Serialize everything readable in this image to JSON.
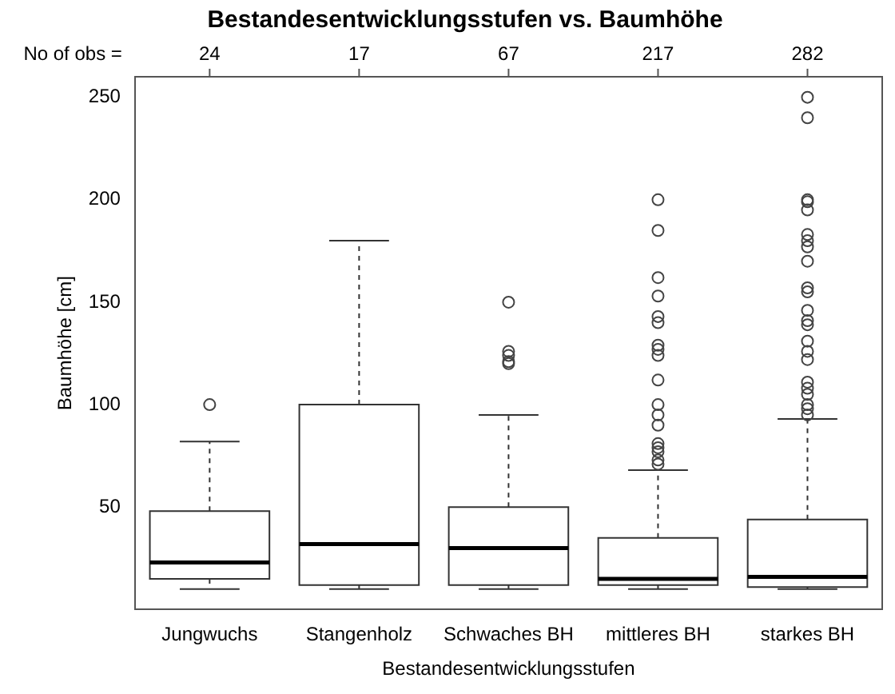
{
  "chart_data": {
    "type": "box",
    "title": "Bestandesentwicklungsstufen vs. Baumhöhe",
    "xlabel": "Bestandesentwicklungsstufen",
    "ylabel": "Baumhöhe [cm]",
    "categories": [
      "Jungwuchs",
      "Stangenholz",
      "Schwaches BH",
      "mittleres BH",
      "starkes BH"
    ],
    "boxes": [
      {
        "low": 10,
        "q1": 15,
        "median": 23,
        "q3": 48,
        "high": 82,
        "outliers": [
          100
        ]
      },
      {
        "low": 10,
        "q1": 12,
        "median": 32,
        "q3": 100,
        "high": 180
      },
      {
        "low": 10,
        "q1": 12,
        "median": 30,
        "q3": 50,
        "high": 95,
        "outliers": [
          150,
          126,
          124,
          121,
          120
        ]
      },
      {
        "low": 10,
        "q1": 12,
        "median": 15,
        "q3": 35,
        "high": 68,
        "outliers": [
          200,
          185,
          162,
          153,
          143,
          140,
          129,
          127,
          124,
          112,
          100,
          95,
          90,
          81,
          79,
          77,
          73,
          71
        ]
      },
      {
        "low": 10,
        "q1": 11,
        "median": 16,
        "q3": 44,
        "high": 93,
        "outliers": [
          250,
          240,
          200,
          199,
          195,
          183,
          180,
          177,
          170,
          157,
          155,
          146,
          141,
          139,
          131,
          126,
          122,
          111,
          108,
          105,
          100,
          98,
          95
        ]
      }
    ],
    "ylim": [
      0,
      260
    ],
    "yticks": [
      50,
      100,
      150,
      200,
      250
    ],
    "grid": false,
    "legend": false,
    "marker": "circle",
    "annotations": [
      "No of obs =",
      {
        "text": "24",
        "x": "Jungwuchs"
      },
      {
        "text": "17",
        "x": "Stangenholz"
      },
      {
        "text": "67",
        "x": "Schwaches BH"
      },
      {
        "text": "217",
        "x": "mittleres BH"
      },
      {
        "text": "282",
        "x": "starkes BH"
      }
    ]
  }
}
